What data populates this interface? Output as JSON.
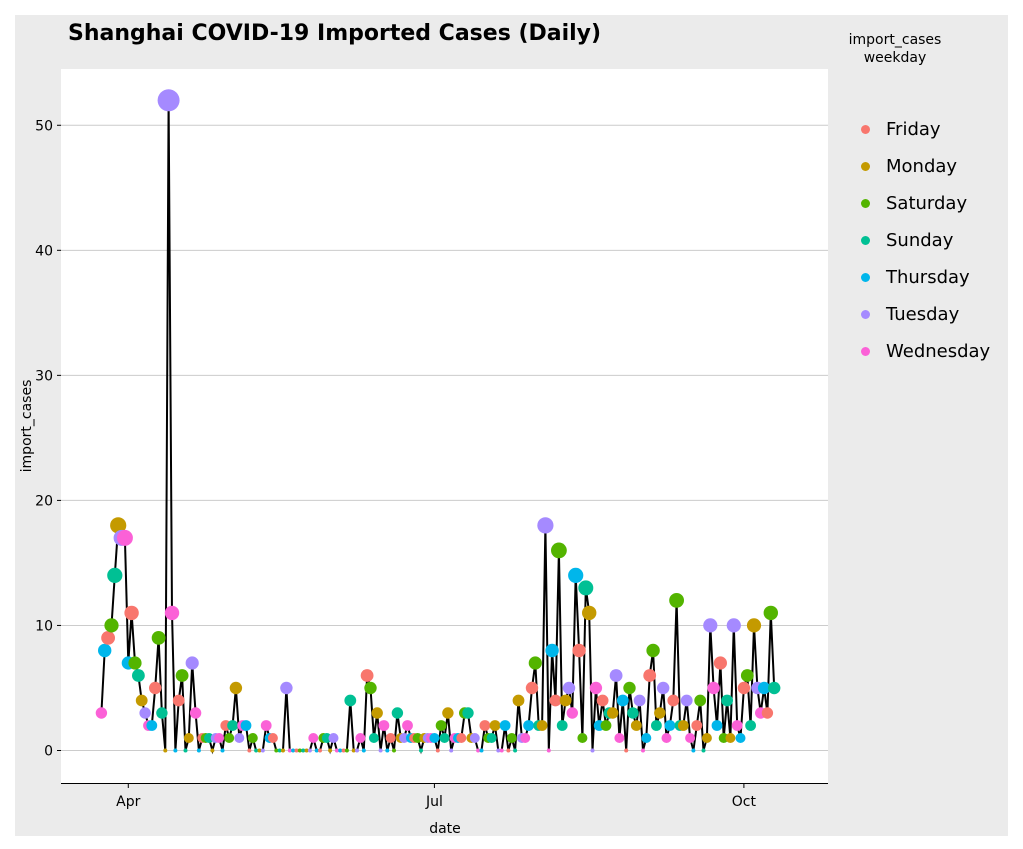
{
  "chart_data": {
    "type": "scatter",
    "title": "Shanghai COVID-19 Imported Cases (Daily)",
    "xlabel": "date",
    "ylabel": "import_cases",
    "x_tick_labels": [
      "Apr",
      "Jul",
      "Oct"
    ],
    "y_ticks": [
      0,
      10,
      20,
      30,
      40,
      50
    ],
    "ylim": [
      -2.6,
      54.5
    ],
    "xlim": [
      "2020-03-12",
      "2020-10-26"
    ],
    "grid": true,
    "legend": {
      "title": "import_cases\nweekday",
      "placement": "right",
      "entries": [
        "Friday",
        "Monday",
        "Saturday",
        "Sunday",
        "Thursday",
        "Tuesday",
        "Wednesday"
      ]
    },
    "colors": {
      "Friday": "#F8766D",
      "Monday": "#C49A00",
      "Saturday": "#53B400",
      "Sunday": "#00C094",
      "Thursday": "#00B6EB",
      "Tuesday": "#A58AFF",
      "Wednesday": "#FB61D7",
      "line": "#000000"
    },
    "marker_size_by": "import_cases",
    "start_date": "2020-03-24",
    "start_weekday_index": 2,
    "weekday_order": [
      "Monday",
      "Tuesday",
      "Wednesday",
      "Thursday",
      "Friday",
      "Saturday",
      "Sunday"
    ],
    "values": [
      3,
      8,
      9,
      10,
      14,
      18,
      17,
      17,
      7,
      11,
      7,
      6,
      4,
      3,
      2,
      2,
      5,
      9,
      3,
      0,
      52,
      11,
      0,
      4,
      6,
      0,
      1,
      7,
      3,
      0,
      1,
      1,
      1,
      0,
      1,
      1,
      0,
      2,
      1,
      2,
      5,
      1,
      2,
      2,
      0,
      1,
      0,
      0,
      0,
      2,
      1,
      1,
      0,
      0,
      0,
      5,
      0,
      0,
      0,
      0,
      0,
      0,
      0,
      1,
      0,
      0,
      1,
      1,
      0,
      1,
      0,
      0,
      0,
      0,
      4,
      0,
      0,
      1,
      0,
      6,
      5,
      1,
      3,
      0,
      2,
      0,
      1,
      0,
      3,
      1,
      1,
      2,
      1,
      1,
      1,
      0,
      1,
      1,
      1,
      1,
      0,
      2,
      1,
      3,
      0,
      1,
      1,
      1,
      3,
      3,
      1,
      1,
      0,
      0,
      2,
      1,
      1,
      2,
      0,
      0,
      2,
      0,
      1,
      0,
      4,
      1,
      1,
      2,
      5,
      7,
      2,
      2,
      18,
      0,
      8,
      4,
      16,
      2,
      4,
      5,
      3,
      14,
      8,
      1,
      13,
      11,
      0,
      5,
      2,
      4,
      2,
      3,
      3,
      6,
      1,
      4,
      0,
      5,
      3,
      2,
      4,
      0,
      1,
      6,
      8,
      2,
      3,
      5,
      1,
      2,
      4,
      12,
      2,
      2,
      4,
      1,
      0,
      2,
      4,
      0,
      1,
      10,
      5,
      2,
      7,
      1,
      4,
      1,
      10,
      2,
      1,
      5,
      6,
      2,
      10,
      5,
      3,
      5,
      3,
      11,
      5
    ]
  }
}
